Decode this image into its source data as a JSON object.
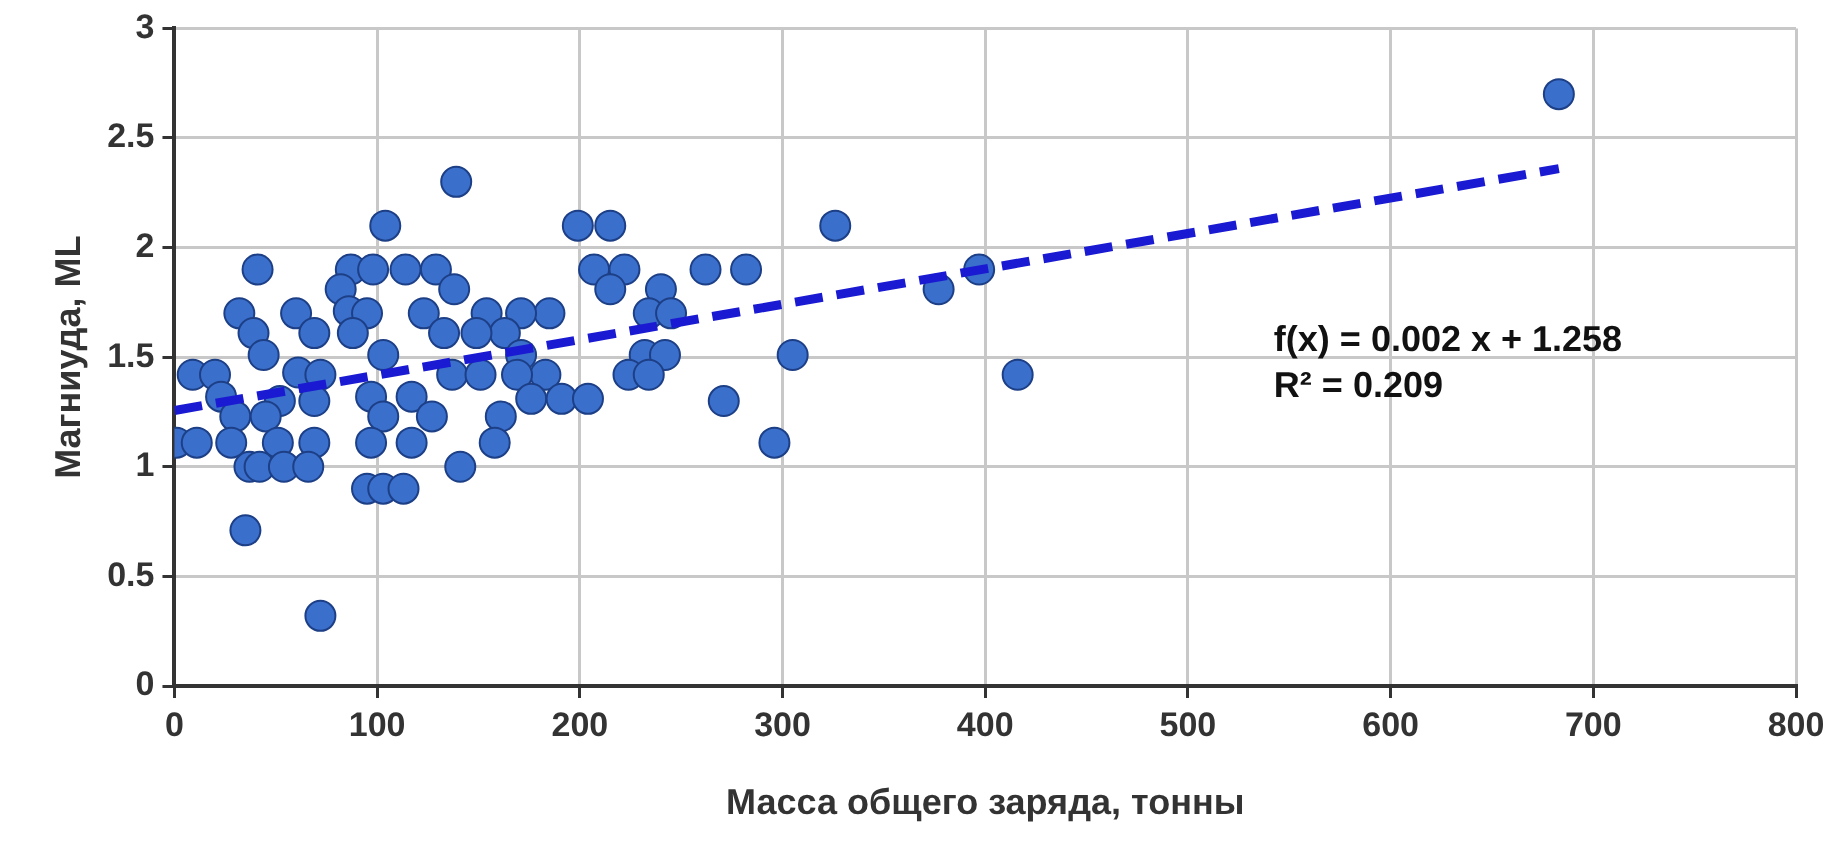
{
  "chart_data": {
    "type": "scatter",
    "xlabel": "Масса общего заряда, тонны",
    "ylabel": "Магниуда, ML",
    "xlim": [
      0,
      800
    ],
    "xticks": [
      0,
      100,
      200,
      300,
      400,
      500,
      600,
      700,
      800
    ],
    "ylim": [
      0,
      3
    ],
    "yticks": [
      0,
      0.5,
      1,
      1.5,
      2,
      2.5,
      3
    ],
    "grid": true,
    "legend": false,
    "marker": "circle",
    "annotations": [
      "f(x) = 0.002 x + 1.258",
      "R² = 0.209"
    ],
    "series": [
      {
        "color": "#3a6fcc",
        "x": [
          139,
          104,
          41,
          87,
          98,
          114,
          129,
          138,
          82,
          32,
          60,
          86,
          95,
          39,
          69,
          88,
          123,
          133,
          154,
          44,
          103,
          9,
          20,
          61,
          72,
          137,
          151,
          23,
          52,
          69,
          97,
          117,
          30,
          45,
          103,
          127,
          161,
          1,
          11,
          28,
          51,
          69,
          97,
          117,
          158,
          37,
          42,
          54,
          66,
          141,
          95,
          103,
          113,
          35,
          72,
          199,
          215,
          207,
          222,
          215,
          240,
          234,
          245,
          185,
          171,
          163,
          149,
          171,
          183,
          169,
          232,
          242,
          224,
          234,
          176,
          191,
          204,
          683,
          326,
          262,
          282,
          377,
          397,
          305,
          271,
          296,
          416
        ],
        "values": [
          2.3,
          2.1,
          1.9,
          1.9,
          1.9,
          1.9,
          1.9,
          1.81,
          1.81,
          1.7,
          1.7,
          1.71,
          1.7,
          1.61,
          1.61,
          1.61,
          1.7,
          1.61,
          1.7,
          1.51,
          1.51,
          1.42,
          1.42,
          1.43,
          1.42,
          1.42,
          1.42,
          1.32,
          1.3,
          1.3,
          1.32,
          1.32,
          1.23,
          1.23,
          1.23,
          1.23,
          1.23,
          1.11,
          1.11,
          1.11,
          1.11,
          1.11,
          1.11,
          1.11,
          1.11,
          1,
          1,
          1,
          1,
          1,
          0.9,
          0.9,
          0.9,
          0.71,
          0.32,
          2.1,
          2.1,
          1.9,
          1.9,
          1.81,
          1.81,
          1.7,
          1.7,
          1.7,
          1.7,
          1.61,
          1.61,
          1.51,
          1.42,
          1.42,
          1.51,
          1.51,
          1.42,
          1.42,
          1.31,
          1.31,
          1.31,
          2.7,
          2.1,
          1.9,
          1.9,
          1.81,
          1.9,
          1.51,
          1.3,
          1.11,
          1.42
        ]
      },
      {
        "type": "line",
        "color": "#1a1ad2",
        "line_style": "dashed",
        "marker": "none",
        "x": [
          0,
          683
        ],
        "values": [
          1.257,
          2.36
        ]
      }
    ]
  }
}
